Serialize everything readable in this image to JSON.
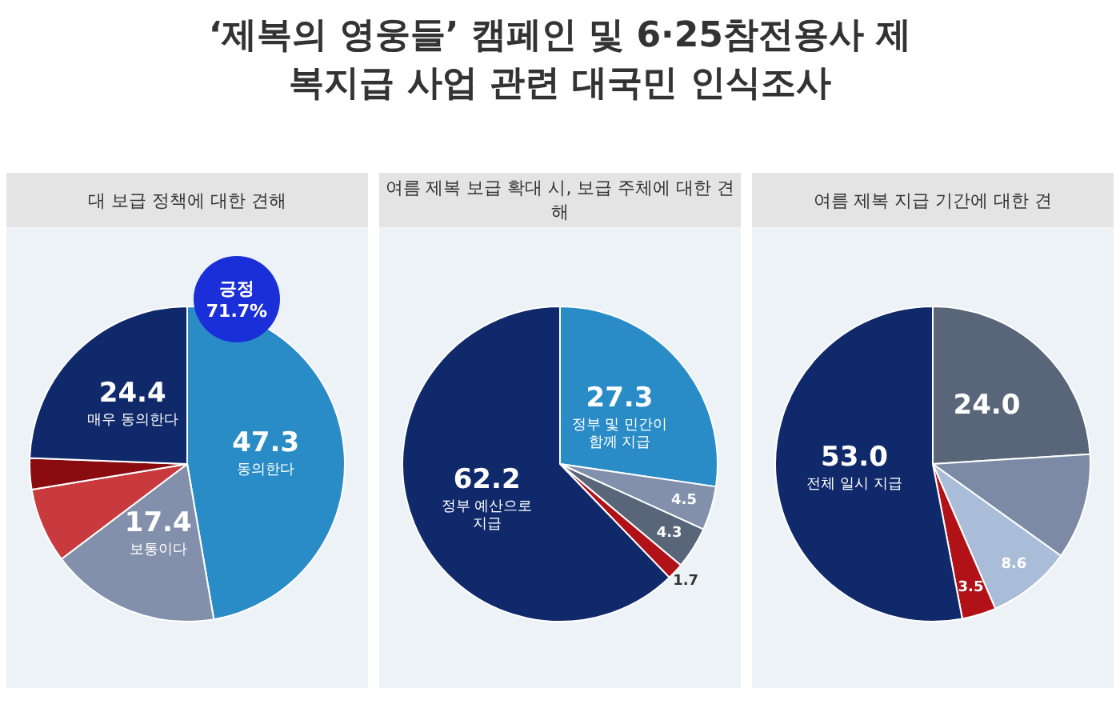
{
  "chart_data": [
    {
      "type": "other",
      "title": "‘제복의 영웅들’ 캠페인 및 6·25참전용사 제복지급 사업 관련 대국민 인식조사"
    },
    {
      "type": "pie",
      "title": "대 보급 정책에 대한 견해",
      "categories": [
        "동의한다",
        "보통이다",
        null,
        null,
        "매우 동의한다"
      ],
      "values": [
        47.3,
        17.4,
        7.7,
        3.2,
        24.4
      ],
      "colors": [
        "#2a8cc6",
        "#8390ac",
        "#c93a3e",
        "#8a0c10",
        "#10296b"
      ],
      "value_labels": [
        "47.3",
        "17.4",
        null,
        null,
        "24.4"
      ],
      "annotations": [
        "긍정 71.7%"
      ]
    },
    {
      "type": "pie",
      "title": "여름 제복 보급 확대 시, 보급 주체에 대한 견해",
      "categories": [
        "정부 및 민간이 함께 지급",
        null,
        null,
        null,
        "정부 예산으로 지급"
      ],
      "values": [
        27.3,
        4.5,
        4.3,
        1.7,
        62.2
      ],
      "colors": [
        "#2a8cc6",
        "#8390ac",
        "#596578",
        "#b01218",
        "#10296b"
      ],
      "value_labels": [
        "27.3",
        "4.5",
        "4.3",
        "1.7",
        "62.2"
      ]
    },
    {
      "type": "pie",
      "title": "여름 제복 지급 기간에 대한 견",
      "categories": [
        null,
        null,
        null,
        null,
        "전체 일시 지급"
      ],
      "values": [
        24.0,
        10.9,
        8.6,
        3.5,
        53.0
      ],
      "colors": [
        "#596578",
        "#7d8aa6",
        "#a9bdd8",
        "#b01218",
        "#10296b"
      ],
      "value_labels": [
        "24.0",
        null,
        "8.6",
        "3.5",
        "53.0"
      ]
    }
  ]
}
